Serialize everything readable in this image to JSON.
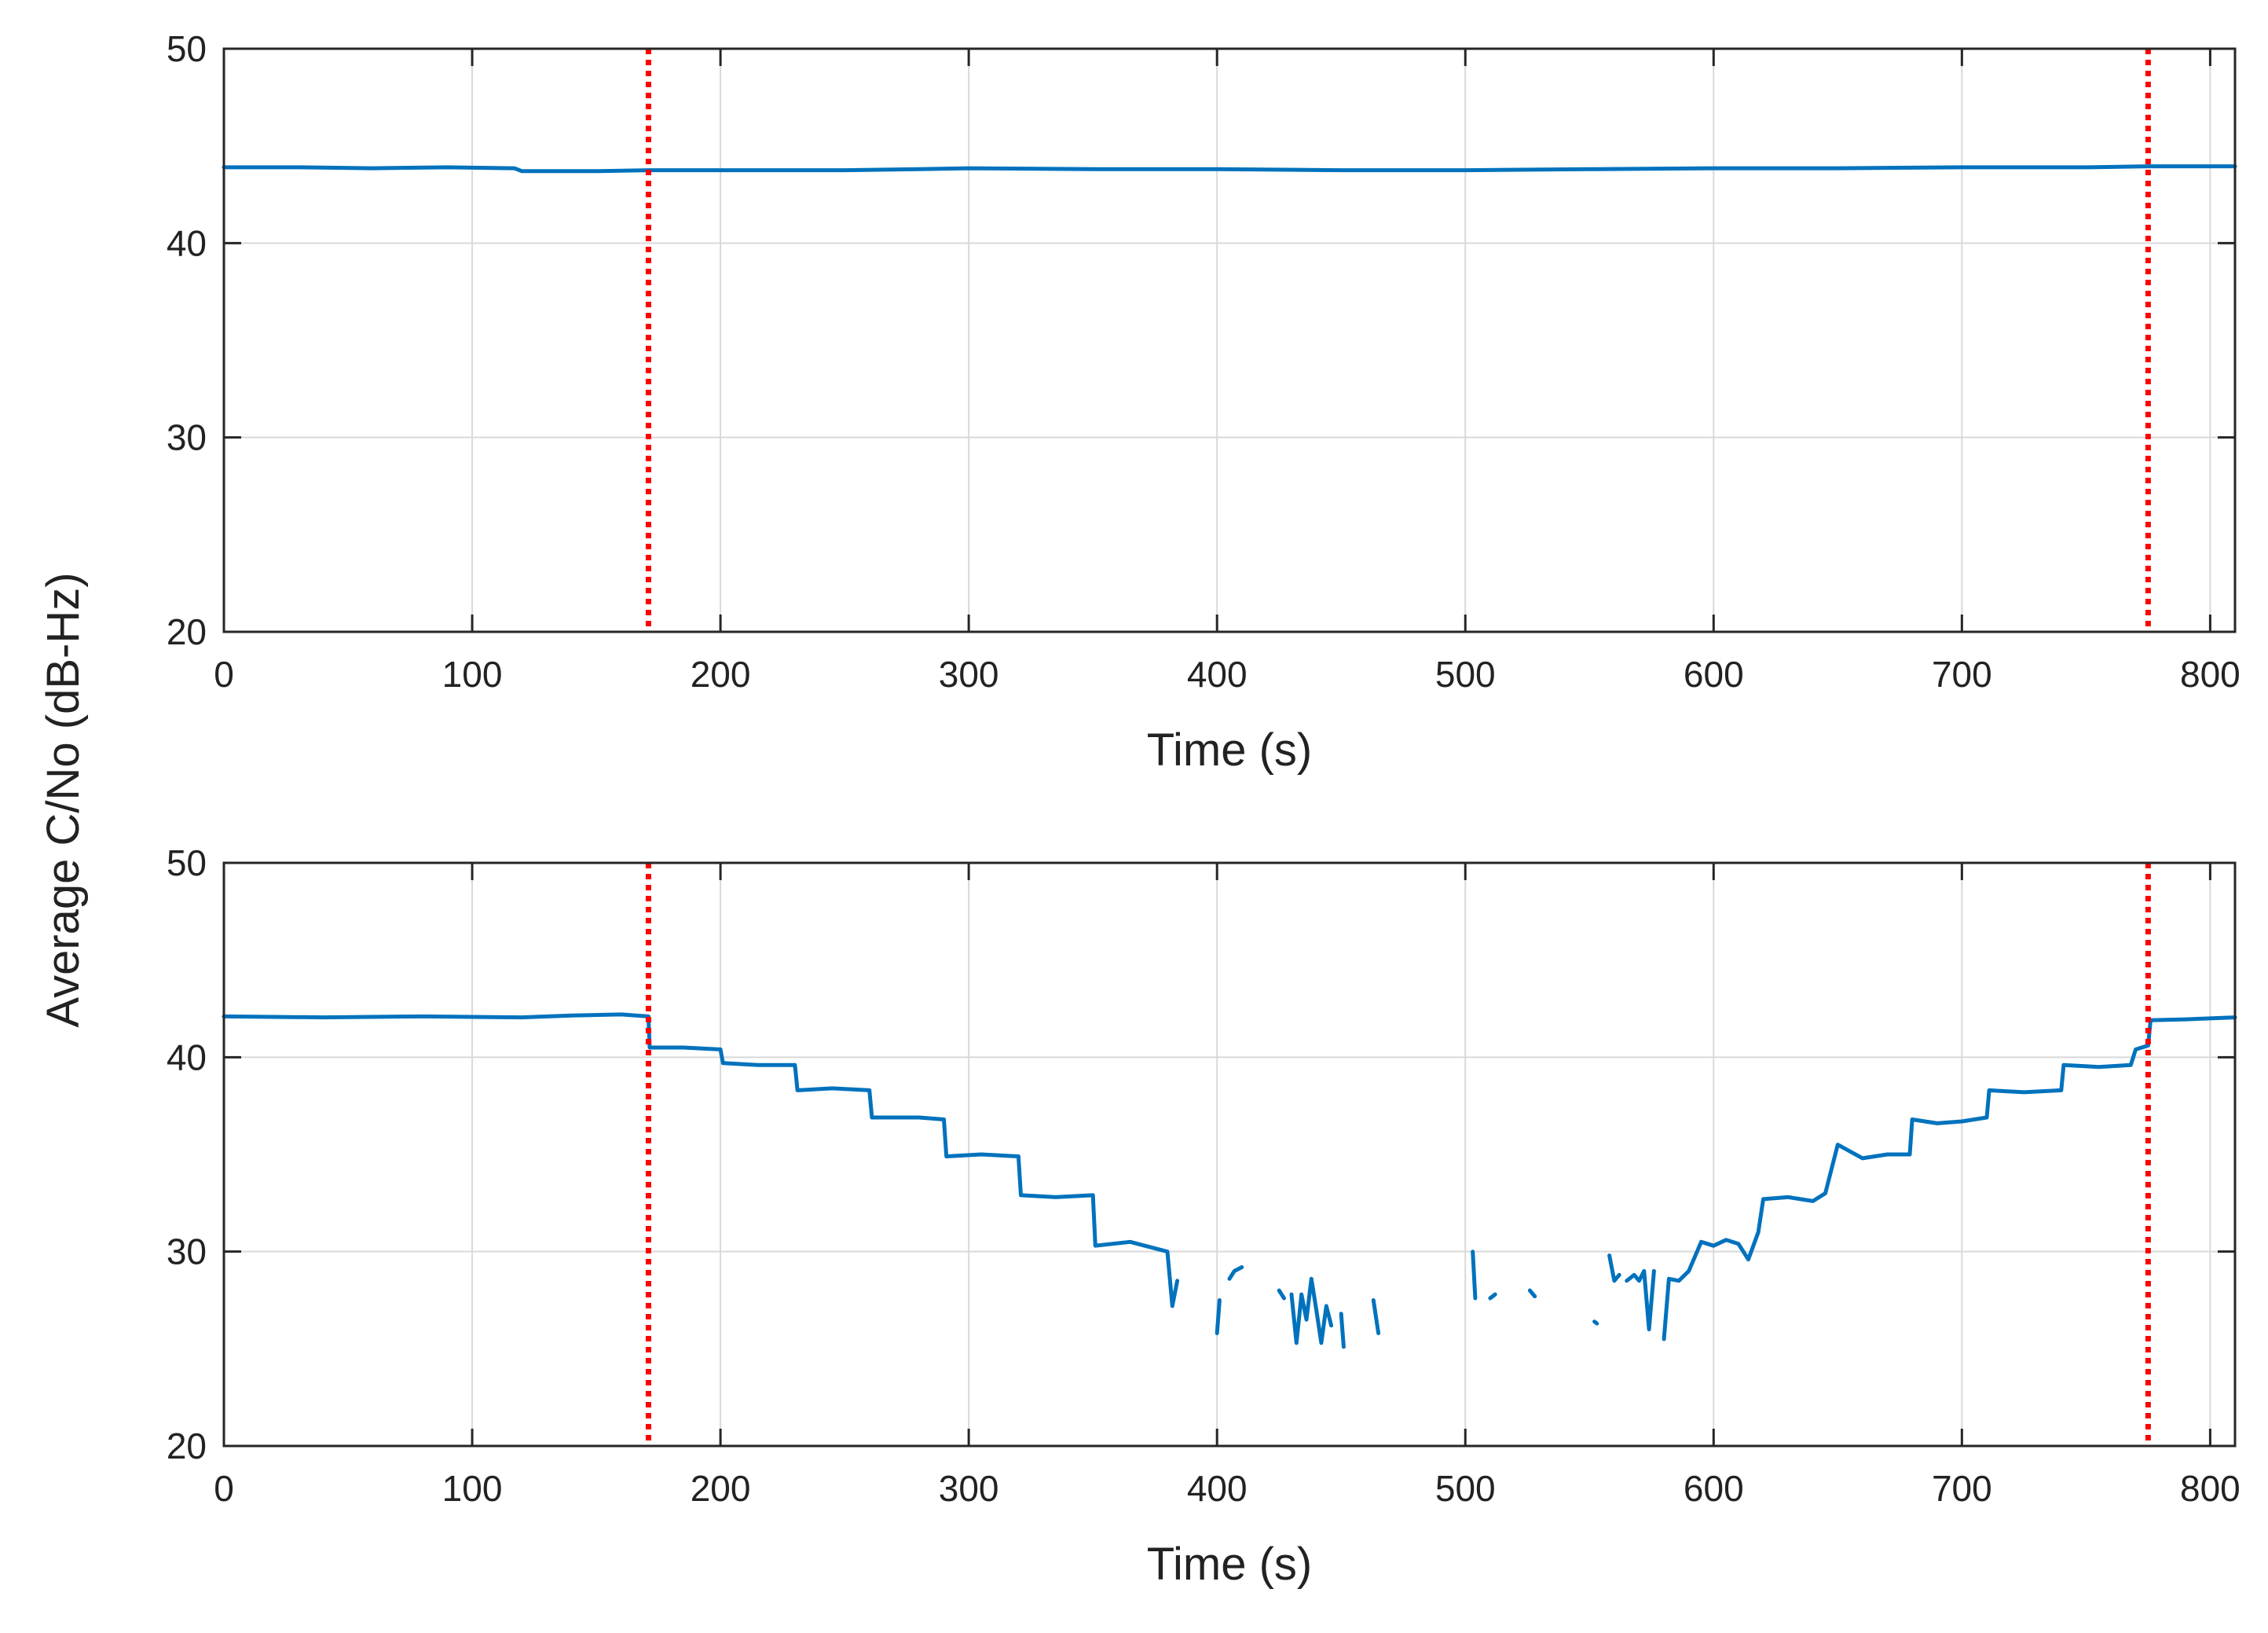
{
  "figure": {
    "ylabel": "Average C/No (dB-Hz)"
  },
  "chart_data": [
    {
      "type": "line",
      "panel": "top",
      "title": "",
      "xlabel": "Time (s)",
      "ylabel": "Average C/No (dB-Hz)",
      "xlim": [
        0,
        810
      ],
      "ylim": [
        20,
        50
      ],
      "xticks": [
        0,
        100,
        200,
        300,
        400,
        500,
        600,
        700,
        800
      ],
      "yticks": [
        20,
        30,
        40,
        50
      ],
      "grid": true,
      "series_color": "#0072BD",
      "marker_color": "#FF0000",
      "markers_x": [
        171,
        775
      ],
      "series": [
        {
          "name": "C/No",
          "segments": [
            [
              [
                0,
                43.9
              ],
              [
                30,
                43.9
              ],
              [
                60,
                43.85
              ],
              [
                90,
                43.9
              ],
              [
                117,
                43.85
              ],
              [
                120,
                43.7
              ],
              [
                150,
                43.7
              ],
              [
                171,
                43.75
              ],
              [
                200,
                43.75
              ],
              [
                250,
                43.75
              ],
              [
                280,
                43.8
              ],
              [
                300,
                43.85
              ],
              [
                350,
                43.8
              ],
              [
                400,
                43.8
              ],
              [
                450,
                43.75
              ],
              [
                500,
                43.75
              ],
              [
                550,
                43.8
              ],
              [
                600,
                43.85
              ],
              [
                650,
                43.85
              ],
              [
                700,
                43.9
              ],
              [
                750,
                43.9
              ],
              [
                775,
                43.95
              ],
              [
                810,
                43.95
              ]
            ]
          ]
        }
      ]
    },
    {
      "type": "line",
      "panel": "bottom",
      "title": "",
      "xlabel": "Time (s)",
      "ylabel": "Average C/No (dB-Hz)",
      "xlim": [
        0,
        810
      ],
      "ylim": [
        20,
        50
      ],
      "xticks": [
        0,
        100,
        200,
        300,
        400,
        500,
        600,
        700,
        800
      ],
      "yticks": [
        20,
        30,
        40,
        50
      ],
      "grid": true,
      "series_color": "#0072BD",
      "marker_color": "#FF0000",
      "markers_x": [
        171,
        775
      ],
      "series": [
        {
          "name": "C/No",
          "segments": [
            [
              [
                0,
                42.1
              ],
              [
                40,
                42.05
              ],
              [
                80,
                42.1
              ],
              [
                120,
                42.05
              ],
              [
                140,
                42.15
              ],
              [
                160,
                42.2
              ],
              [
                171,
                42.1
              ],
              [
                171.5,
                40.5
              ],
              [
                185,
                40.5
              ],
              [
                200,
                40.4
              ],
              [
                201,
                39.7
              ],
              [
                215,
                39.6
              ],
              [
                230,
                39.6
              ],
              [
                231,
                38.3
              ],
              [
                245,
                38.4
              ],
              [
                260,
                38.3
              ],
              [
                261,
                36.9
              ],
              [
                280,
                36.9
              ],
              [
                290,
                36.8
              ],
              [
                291,
                34.9
              ],
              [
                305,
                35.0
              ],
              [
                320,
                34.9
              ],
              [
                321,
                32.9
              ],
              [
                335,
                32.8
              ],
              [
                350,
                32.9
              ],
              [
                351,
                30.3
              ],
              [
                365,
                30.5
              ],
              [
                380,
                30.0
              ],
              [
                382,
                27.2
              ],
              [
                384,
                28.5
              ]
            ],
            [
              [
                400,
                25.8
              ],
              [
                401,
                27.5
              ]
            ],
            [
              [
                405,
                28.6
              ],
              [
                407,
                29.0
              ],
              [
                410,
                29.2
              ]
            ],
            [
              [
                425,
                28.0
              ],
              [
                427,
                27.6
              ]
            ],
            [
              [
                430,
                27.8
              ],
              [
                432,
                25.3
              ],
              [
                434,
                27.8
              ],
              [
                436,
                26.5
              ],
              [
                438,
                28.6
              ],
              [
                440,
                27.0
              ],
              [
                442,
                25.3
              ],
              [
                444,
                27.2
              ],
              [
                446,
                26.2
              ]
            ],
            [
              [
                450,
                26.8
              ],
              [
                451,
                25.1
              ]
            ],
            [
              [
                463,
                27.5
              ],
              [
                465,
                25.8
              ]
            ],
            [
              [
                503,
                30.0
              ],
              [
                504,
                27.6
              ]
            ],
            [
              [
                510,
                27.6
              ],
              [
                512,
                27.8
              ]
            ],
            [
              [
                526,
                28.0
              ],
              [
                528,
                27.7
              ]
            ],
            [
              [
                552,
                26.4
              ],
              [
                553,
                26.3
              ]
            ],
            [
              [
                558,
                29.8
              ],
              [
                560,
                28.5
              ],
              [
                562,
                28.8
              ]
            ],
            [
              [
                565,
                28.5
              ],
              [
                568,
                28.8
              ],
              [
                570,
                28.5
              ],
              [
                572,
                29.0
              ],
              [
                574,
                26.0
              ],
              [
                576,
                29.0
              ]
            ],
            [
              [
                580,
                25.5
              ],
              [
                582,
                28.6
              ],
              [
                586,
                28.5
              ],
              [
                590,
                29.0
              ],
              [
                595,
                30.5
              ],
              [
                600,
                30.3
              ],
              [
                605,
                30.6
              ],
              [
                610,
                30.4
              ],
              [
                614,
                29.6
              ],
              [
                618,
                31.0
              ],
              [
                620,
                32.7
              ],
              [
                630,
                32.8
              ],
              [
                640,
                32.6
              ],
              [
                645,
                33.0
              ],
              [
                650,
                35.5
              ],
              [
                660,
                34.8
              ],
              [
                670,
                35.0
              ],
              [
                679,
                35.0
              ],
              [
                680,
                36.8
              ],
              [
                690,
                36.6
              ],
              [
                700,
                36.7
              ],
              [
                710,
                36.9
              ],
              [
                711,
                38.3
              ],
              [
                725,
                38.2
              ],
              [
                740,
                38.3
              ],
              [
                741,
                39.6
              ],
              [
                755,
                39.5
              ],
              [
                768,
                39.6
              ],
              [
                770,
                40.4
              ],
              [
                775,
                40.6
              ],
              [
                776,
                41.9
              ],
              [
                790,
                41.95
              ],
              [
                810,
                42.05
              ]
            ]
          ]
        }
      ]
    }
  ]
}
